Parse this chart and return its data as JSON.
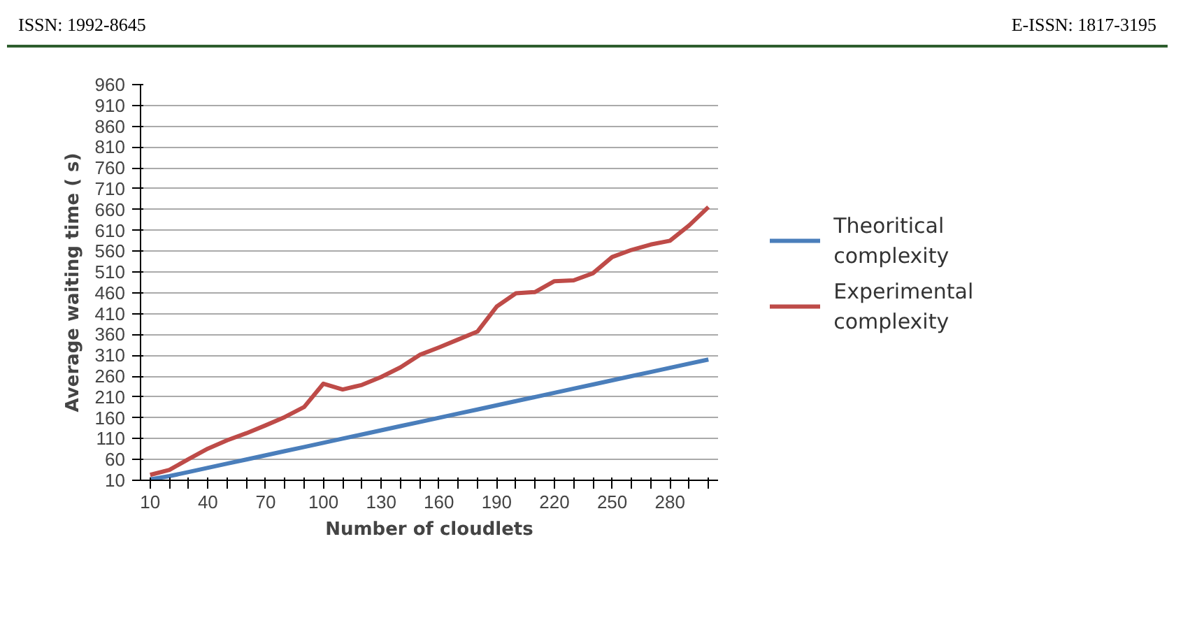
{
  "chart_data": {
    "type": "line",
    "annotations": [
      "ISSN: 1992-8645",
      "E-ISSN: 1817-3195"
    ],
    "xlabel": "Number of cloudlets",
    "ylabel": "Average waiting time ( s)",
    "categories": [
      "10",
      null,
      null,
      "40",
      null,
      null,
      "70",
      null,
      null,
      "100",
      null,
      null,
      "130",
      null,
      null,
      "160",
      null,
      null,
      "190",
      null,
      null,
      "220",
      null,
      null,
      "250",
      null,
      null,
      "280",
      null,
      null
    ],
    "series": [
      {
        "name": "Theoritical complexity",
        "color": "#4a7ebb",
        "values": [
          12,
          20,
          30,
          40,
          50,
          60,
          70,
          80,
          90,
          100,
          110,
          120,
          130,
          140,
          150,
          160,
          170,
          180,
          190,
          200,
          210,
          220,
          230,
          240,
          250,
          260,
          270,
          280,
          290,
          300
        ]
      },
      {
        "name": "Experimental complexity",
        "color": "#be4b48",
        "values": [
          23,
          35,
          61,
          86,
          106,
          123,
          142,
          162,
          186,
          242,
          228,
          239,
          258,
          281,
          311,
          329,
          348,
          367,
          427,
          459,
          462,
          488,
          490,
          507,
          546,
          563,
          576,
          585,
          622,
          666
        ]
      }
    ],
    "ylim": [
      10,
      960
    ],
    "yticks": [
      10,
      60,
      110,
      160,
      210,
      260,
      310,
      360,
      410,
      460,
      510,
      560,
      610,
      660,
      710,
      760,
      810,
      860,
      910,
      960
    ],
    "grid": "y",
    "legend": "right",
    "marker": "none",
    "line_style": "solid"
  }
}
